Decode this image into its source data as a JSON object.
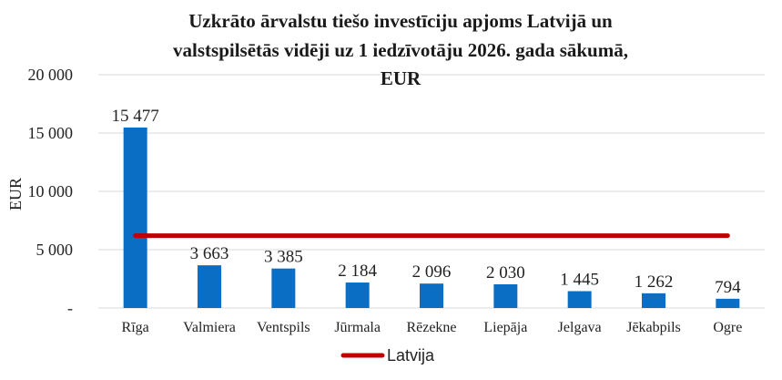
{
  "chart_data": {
    "type": "bar",
    "title_lines": [
      "Uzkrāto ārvalstu tiešo investīciju apjoms Latvijā un",
      "valstspilsētās vidēji uz 1 iedzīvotāju 2026. gada sākumā,",
      "EUR"
    ],
    "ylabel": "EUR",
    "ylim": [
      0,
      20000
    ],
    "yticks": [
      {
        "value": 0,
        "label": "-"
      },
      {
        "value": 5000,
        "label": "5 000"
      },
      {
        "value": 10000,
        "label": "10 000"
      },
      {
        "value": 15000,
        "label": "15 000"
      },
      {
        "value": 20000,
        "label": "20 000"
      }
    ],
    "categories": [
      "Rīga",
      "Valmiera",
      "Ventspils",
      "Jūrmala",
      "Rēzekne",
      "Liepāja",
      "Jelgava",
      "Jēkabpils",
      "Ogre"
    ],
    "values": [
      15477,
      3663,
      3385,
      2184,
      2096,
      2030,
      1445,
      1262,
      794
    ],
    "value_labels": [
      "15 477",
      "3 663",
      "3 385",
      "2 184",
      "2 096",
      "2 030",
      "1 445",
      "1 262",
      "794"
    ],
    "reference_line": {
      "name": "Latvija",
      "value": 6200,
      "color": "#c00000"
    },
    "bar_color": "#0a6fc4",
    "grid": true,
    "legend_position": "bottom-left"
  }
}
